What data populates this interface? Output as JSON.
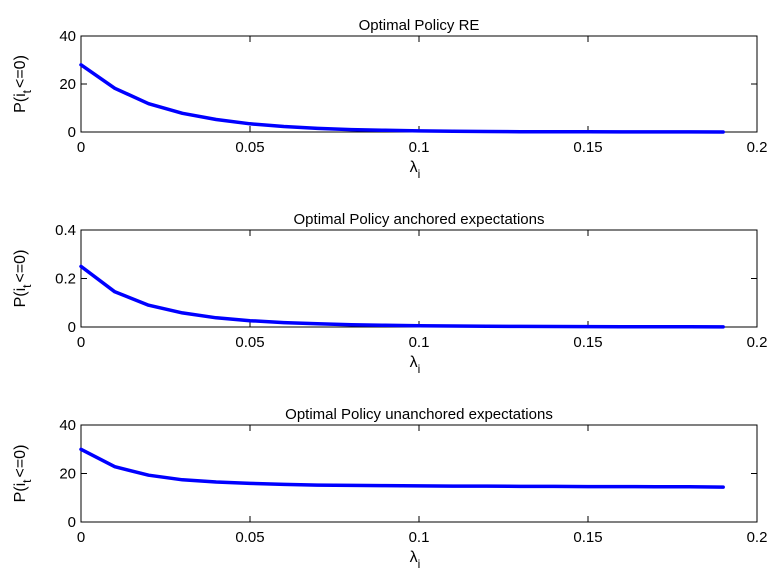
{
  "chart_data": [
    {
      "type": "line",
      "title": "Optimal Policy RE",
      "xlabel": "λ",
      "xlabel_sub": "i",
      "ylabel": "P(i",
      "ylabel_sub": "t",
      "ylabel_tail": "<=0)",
      "xlim": [
        0,
        0.2
      ],
      "ylim": [
        0,
        40
      ],
      "xticks": [
        0,
        0.05,
        0.1,
        0.15,
        0.2
      ],
      "xtick_labels": [
        "0",
        "0.05",
        "0.1",
        "0.15",
        "0.2"
      ],
      "yticks": [
        0,
        20,
        40
      ],
      "ytick_labels": [
        "0",
        "20",
        "40"
      ],
      "grid": false,
      "series": [
        {
          "color": "#0000ff",
          "x": [
            0,
            0.01,
            0.02,
            0.03,
            0.04,
            0.05,
            0.06,
            0.07,
            0.08,
            0.09,
            0.1,
            0.11,
            0.12,
            0.13,
            0.14,
            0.15,
            0.16,
            0.17,
            0.18,
            0.19
          ],
          "y": [
            28,
            18.2,
            11.8,
            7.8,
            5.2,
            3.4,
            2.3,
            1.5,
            1.0,
            0.7,
            0.45,
            0.3,
            0.2,
            0.14,
            0.1,
            0.07,
            0.05,
            0.04,
            0.03,
            0.02
          ]
        }
      ]
    },
    {
      "type": "line",
      "title": "Optimal Policy anchored expectations",
      "xlabel": "λ",
      "xlabel_sub": "i",
      "ylabel": "P(i",
      "ylabel_sub": "t",
      "ylabel_tail": "<=0)",
      "xlim": [
        0,
        0.2
      ],
      "ylim": [
        0,
        0.4
      ],
      "xticks": [
        0,
        0.05,
        0.1,
        0.15,
        0.2
      ],
      "xtick_labels": [
        "0",
        "0.05",
        "0.1",
        "0.15",
        "0.2"
      ],
      "yticks": [
        0,
        0.2,
        0.4
      ],
      "ytick_labels": [
        "0",
        "0.2",
        "0.4"
      ],
      "grid": false,
      "series": [
        {
          "color": "#0000ff",
          "x": [
            0,
            0.01,
            0.02,
            0.03,
            0.04,
            0.05,
            0.06,
            0.07,
            0.08,
            0.09,
            0.1,
            0.11,
            0.12,
            0.13,
            0.14,
            0.15,
            0.16,
            0.17,
            0.18,
            0.19
          ],
          "y": [
            0.25,
            0.145,
            0.09,
            0.058,
            0.038,
            0.026,
            0.018,
            0.013,
            0.009,
            0.007,
            0.005,
            0.004,
            0.003,
            0.0025,
            0.002,
            0.0016,
            0.0013,
            0.001,
            0.0008,
            0.0006
          ]
        }
      ]
    },
    {
      "type": "line",
      "title": "Optimal Policy unanchored expectations",
      "xlabel": "λ",
      "xlabel_sub": "i",
      "ylabel": "P(i",
      "ylabel_sub": "t",
      "ylabel_tail": "<=0)",
      "xlim": [
        0,
        0.2
      ],
      "ylim": [
        0,
        40
      ],
      "xticks": [
        0,
        0.05,
        0.1,
        0.15,
        0.2
      ],
      "xtick_labels": [
        "0",
        "0.05",
        "0.1",
        "0.15",
        "0.2"
      ],
      "yticks": [
        0,
        20,
        40
      ],
      "ytick_labels": [
        "0",
        "20",
        "40"
      ],
      "grid": false,
      "series": [
        {
          "color": "#0000ff",
          "x": [
            0,
            0.01,
            0.02,
            0.03,
            0.04,
            0.05,
            0.06,
            0.07,
            0.08,
            0.09,
            0.1,
            0.11,
            0.12,
            0.13,
            0.14,
            0.15,
            0.16,
            0.17,
            0.18,
            0.19
          ],
          "y": [
            30,
            22.8,
            19.3,
            17.4,
            16.5,
            15.9,
            15.5,
            15.2,
            15.1,
            15.0,
            14.9,
            14.8,
            14.8,
            14.7,
            14.7,
            14.6,
            14.6,
            14.5,
            14.5,
            14.4
          ]
        }
      ]
    }
  ]
}
